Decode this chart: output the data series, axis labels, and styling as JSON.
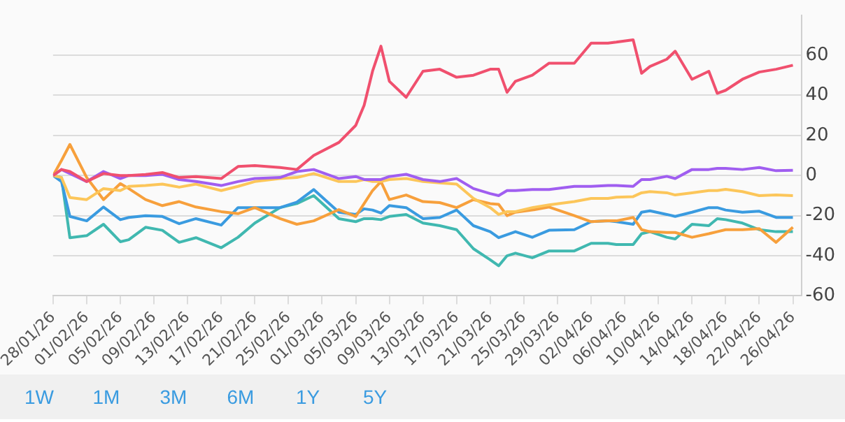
{
  "chart_data": {
    "type": "line",
    "x": [
      "--01-28",
      "--01-29",
      "--01-30",
      "--02-01",
      "--02-03",
      "--02-05",
      "--02-06",
      "--02-08",
      "--02-10",
      "--02-12",
      "--02-14",
      "--02-17",
      "--02-19",
      "--02-21",
      "--02-24",
      "--02-26",
      "--02-28",
      "--03-03",
      "--03-05",
      "--03-06",
      "--03-07",
      "--03-08",
      "--03-09",
      "--03-11",
      "--03-13",
      "--03-15",
      "--03-17",
      "--03-19",
      "--03-21",
      "--03-22",
      "--03-23",
      "--03-24",
      "--03-26",
      "--03-28",
      "--03-31",
      "--04-02",
      "--04-04",
      "--04-05",
      "--04-07",
      "--04-08",
      "--04-09",
      "--04-11",
      "--04-12",
      "--04-14",
      "--04-16",
      "--04-17",
      "--04-18",
      "--04-20",
      "--04-22",
      "--04-24",
      "--04-26"
    ],
    "series": [
      {
        "color": "#f0506e",
        "values": [
          0,
          3,
          2,
          -3,
          1,
          0,
          0,
          0.5,
          1.5,
          -1,
          -0.5,
          -1.5,
          4.5,
          5,
          4,
          3,
          10,
          16.5,
          25,
          35,
          52,
          64.5,
          47,
          39,
          52,
          53,
          49,
          50,
          53,
          53,
          41.5,
          47,
          50,
          56,
          56,
          66,
          66,
          66.5,
          67.7,
          51,
          54.4,
          58,
          62,
          48,
          52,
          41,
          42.5,
          48,
          51.6,
          53,
          55
        ]
      },
      {
        "color": "#a05ef0",
        "values": [
          0,
          3,
          1,
          -3,
          2,
          -1.5,
          0,
          0,
          0.6,
          -2,
          -3,
          -5,
          -3,
          -1.5,
          -1,
          2,
          3,
          -1.5,
          -0.5,
          -2,
          -2,
          -2,
          -0.5,
          0.6,
          -2,
          -3,
          -1.5,
          -6.5,
          -9,
          -10,
          -7.5,
          -7.5,
          -7,
          -7,
          -5.4,
          -5.4,
          -5,
          -5,
          -5.4,
          -2,
          -2,
          -0.4,
          -1.5,
          3,
          3,
          3.6,
          3.6,
          3,
          4,
          2.4,
          2.6
        ]
      },
      {
        "color": "#fcc65a",
        "values": [
          0,
          -1,
          -11,
          -12,
          -6.5,
          -7.5,
          -5.4,
          -5,
          -4.3,
          -5.8,
          -4.3,
          -7.5,
          -5.4,
          -3,
          -1.5,
          -1,
          1,
          -3,
          -3,
          -2,
          -3,
          -3,
          -2,
          -1.5,
          -3,
          -3.7,
          -4.3,
          -11.4,
          -16,
          -19.4,
          -18,
          -18,
          -16,
          -14.6,
          -13,
          -11.4,
          -11.4,
          -10.8,
          -10.5,
          -8.6,
          -8,
          -8.6,
          -9.7,
          -8.6,
          -7.5,
          -7.5,
          -6.9,
          -8,
          -10,
          -9.7,
          -10
        ]
      },
      {
        "color": "#f7a03c",
        "values": [
          0,
          7.5,
          15.5,
          -1,
          -12,
          -4,
          -6.5,
          -12,
          -15,
          -13,
          -15.7,
          -18,
          -19,
          -16,
          -21.5,
          -24.3,
          -22.6,
          -17,
          -20.4,
          -14,
          -7.5,
          -3,
          -12,
          -9.7,
          -13,
          -13.5,
          -16,
          -12,
          -14,
          -14.4,
          -20,
          -18.3,
          -17.2,
          -15.7,
          -20,
          -23,
          -22.6,
          -22.6,
          -20.9,
          -27,
          -28,
          -28.4,
          -28.4,
          -30.8,
          -29,
          -28,
          -27,
          -27,
          -26.5,
          -33.3,
          -25.8
        ]
      },
      {
        "color": "#3a9be0",
        "values": [
          0,
          -3,
          -20.4,
          -22.6,
          -15.7,
          -22,
          -20.9,
          -20,
          -20.4,
          -24,
          -21.5,
          -24.7,
          -16,
          -16,
          -16,
          -13.3,
          -7,
          -18.3,
          -19.4,
          -16.6,
          -17.2,
          -18.7,
          -15,
          -16,
          -21.5,
          -20.9,
          -17.2,
          -25,
          -28,
          -31,
          -29.5,
          -28,
          -30.8,
          -27.3,
          -27,
          -23,
          -22.6,
          -23,
          -24.3,
          -18.3,
          -17.6,
          -19.4,
          -20.4,
          -18.3,
          -16,
          -16,
          -17.2,
          -18.3,
          -17.8,
          -20.9,
          -20.9
        ]
      },
      {
        "color": "#40b8b0",
        "values": [
          0,
          -1,
          -31,
          -30,
          -24.3,
          -33,
          -32,
          -25.8,
          -27.3,
          -33.3,
          -31,
          -36,
          -30.8,
          -23.7,
          -16,
          -14,
          -10,
          -21.5,
          -23,
          -21.5,
          -21.5,
          -22,
          -20.4,
          -19.4,
          -23.7,
          -25,
          -27,
          -36.5,
          -42,
          -45,
          -40,
          -38.7,
          -41,
          -37.6,
          -37.6,
          -33.8,
          -33.8,
          -34.4,
          -34.4,
          -29,
          -28,
          -30.8,
          -31.6,
          -24.3,
          -25,
          -21.5,
          -22,
          -23.7,
          -27,
          -28,
          -28
        ]
      }
    ],
    "xlim": [
      "--01-28",
      "--04-27"
    ],
    "xticks": [
      {
        "value": "--01-28",
        "label": "28/01/26"
      },
      {
        "value": "--02-01",
        "label": "01/02/26"
      },
      {
        "value": "--02-05",
        "label": "05/02/26"
      },
      {
        "value": "--02-09",
        "label": "09/02/26"
      },
      {
        "value": "--02-13",
        "label": "13/02/26"
      },
      {
        "value": "--02-17",
        "label": "17/02/26"
      },
      {
        "value": "--02-21",
        "label": "21/02/26"
      },
      {
        "value": "--02-25",
        "label": "25/02/26"
      },
      {
        "value": "--03-01",
        "label": "01/03/26"
      },
      {
        "value": "--03-05",
        "label": "05/03/26"
      },
      {
        "value": "--03-09",
        "label": "09/03/26"
      },
      {
        "value": "--03-13",
        "label": "13/03/26"
      },
      {
        "value": "--03-17",
        "label": "17/03/26"
      },
      {
        "value": "--03-21",
        "label": "21/03/26"
      },
      {
        "value": "--03-25",
        "label": "25/03/26"
      },
      {
        "value": "--03-29",
        "label": "29/03/26"
      },
      {
        "value": "--04-02",
        "label": "02/04/26"
      },
      {
        "value": "--04-06",
        "label": "06/04/26"
      },
      {
        "value": "--04-10",
        "label": "10/04/26"
      },
      {
        "value": "--04-14",
        "label": "14/04/26"
      },
      {
        "value": "--04-18",
        "label": "18/04/26"
      },
      {
        "value": "--04-22",
        "label": "22/04/26"
      },
      {
        "value": "--04-26",
        "label": "26/04/26"
      }
    ],
    "ylim": [
      -60,
      80
    ],
    "yticks": [
      -60,
      -40,
      -20,
      0,
      20,
      40,
      60
    ],
    "grid": "y",
    "legend": false,
    "marker": "none",
    "annotations": [
      "1W",
      "1M",
      "3M",
      "6M",
      "1Y",
      "5Y"
    ]
  }
}
